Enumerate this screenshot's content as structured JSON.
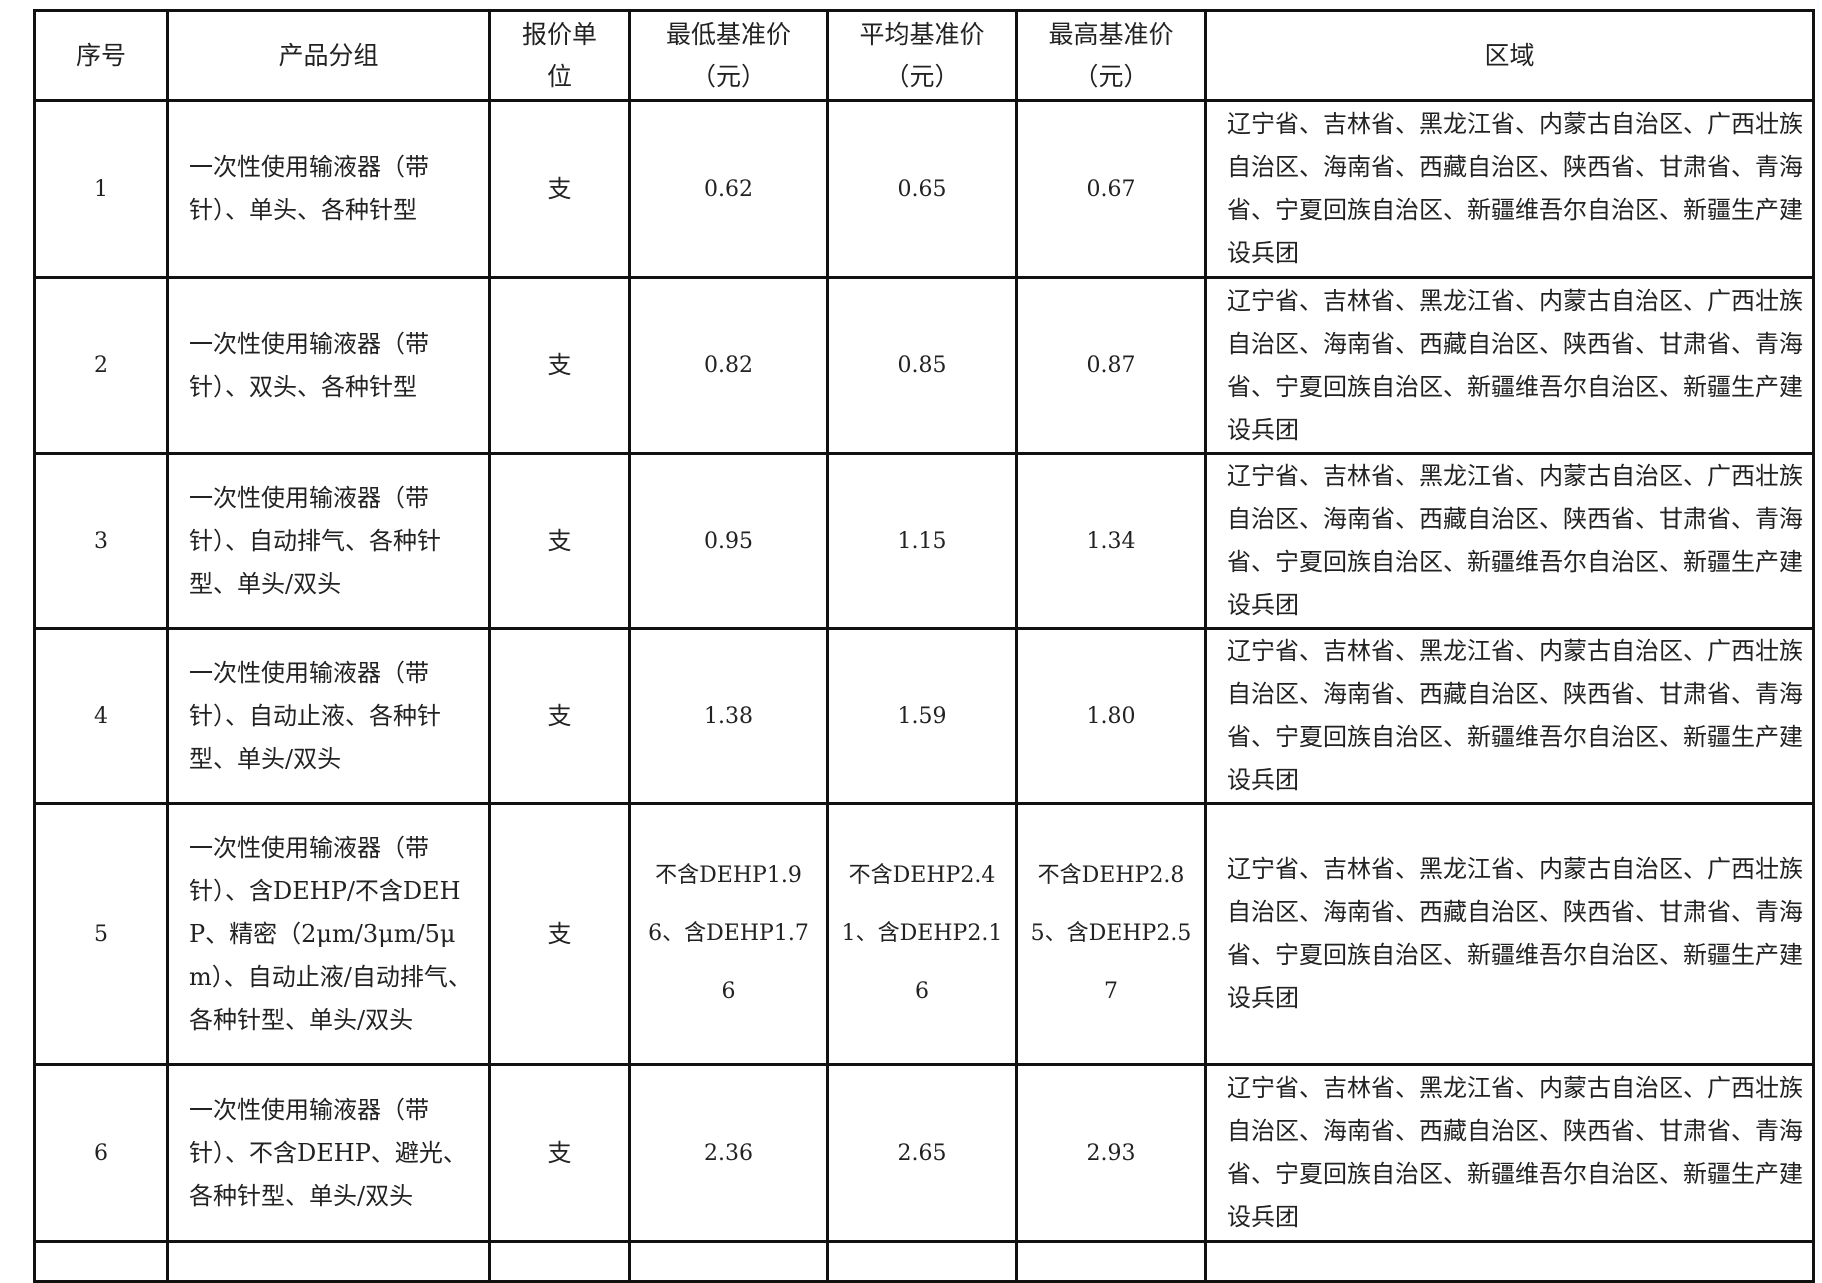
{
  "headers": [
    "序号",
    "产品分组",
    "报价单位",
    "最低基准价（元）",
    "平均基准价（元）",
    "最高基准价（元）",
    "区域"
  ],
  "header_lines": {
    "unit": [
      "报价单",
      "位"
    ],
    "min": [
      "最低基准价",
      "（元）"
    ],
    "avg": [
      "平均基准价",
      "（元）"
    ],
    "max": [
      "最高基准价",
      "（元）"
    ]
  },
  "rows": [
    {
      "no": "1",
      "product": "一次性使用输液器（带针）、单头、各种针型",
      "unit": "支",
      "min": "0.62",
      "avg": "0.65",
      "max": "0.67",
      "region": "辽宁省、吉林省、黑龙江省、内蒙古自治区、广西壮族自治区、海南省、西藏自治区、陕西省、甘肃省、青海省、宁夏回族自治区、新疆维吾尔自治区、新疆生产建设兵团"
    },
    {
      "no": "2",
      "product": "一次性使用输液器（带针）、双头、各种针型",
      "unit": "支",
      "min": "0.82",
      "avg": "0.85",
      "max": "0.87",
      "region": "辽宁省、吉林省、黑龙江省、内蒙古自治区、广西壮族自治区、海南省、西藏自治区、陕西省、甘肃省、青海省、宁夏回族自治区、新疆维吾尔自治区、新疆生产建设兵团"
    },
    {
      "no": "3",
      "product": "一次性使用输液器（带针）、自动排气、各种针型、单头/双头",
      "unit": "支",
      "min": "0.95",
      "avg": "1.15",
      "max": "1.34",
      "region": "辽宁省、吉林省、黑龙江省、内蒙古自治区、广西壮族自治区、海南省、西藏自治区、陕西省、甘肃省、青海省、宁夏回族自治区、新疆维吾尔自治区、新疆生产建设兵团"
    },
    {
      "no": "4",
      "product": "一次性使用输液器（带针）、自动止液、各种针型、单头/双头",
      "unit": "支",
      "min": "1.38",
      "avg": "1.59",
      "max": "1.80",
      "region": "辽宁省、吉林省、黑龙江省、内蒙古自治区、广西壮族自治区、海南省、西藏自治区、陕西省、甘肃省、青海省、宁夏回族自治区、新疆维吾尔自治区、新疆生产建设兵团"
    },
    {
      "no": "5",
      "product": "一次性使用输液器（带针）、含DEHP/不含DEHP、精密（2μm/3μm/5μm）、自动止液/自动排气、各种针型、单头/双头",
      "unit": "支",
      "min": "不含DEHP1.96、含DEHP1.76",
      "avg": "不含DEHP2.41、含DEHP2.16",
      "max": "不含DEHP2.85、含DEHP2.57",
      "region": "辽宁省、吉林省、黑龙江省、内蒙古自治区、广西壮族自治区、海南省、西藏自治区、陕西省、甘肃省、青海省、宁夏回族自治区、新疆维吾尔自治区、新疆生产建设兵团"
    },
    {
      "no": "6",
      "product": "一次性使用输液器（带针）、不含DEHP、避光、各种针型、单头/双头",
      "unit": "支",
      "min": "2.36",
      "avg": "2.65",
      "max": "2.93",
      "region": "辽宁省、吉林省、黑龙江省、内蒙古自治区、广西壮族自治区、海南省、西藏自治区、陕西省、甘肃省、青海省、宁夏回族自治区、新疆维吾尔自治区、新疆生产建设兵团"
    }
  ]
}
